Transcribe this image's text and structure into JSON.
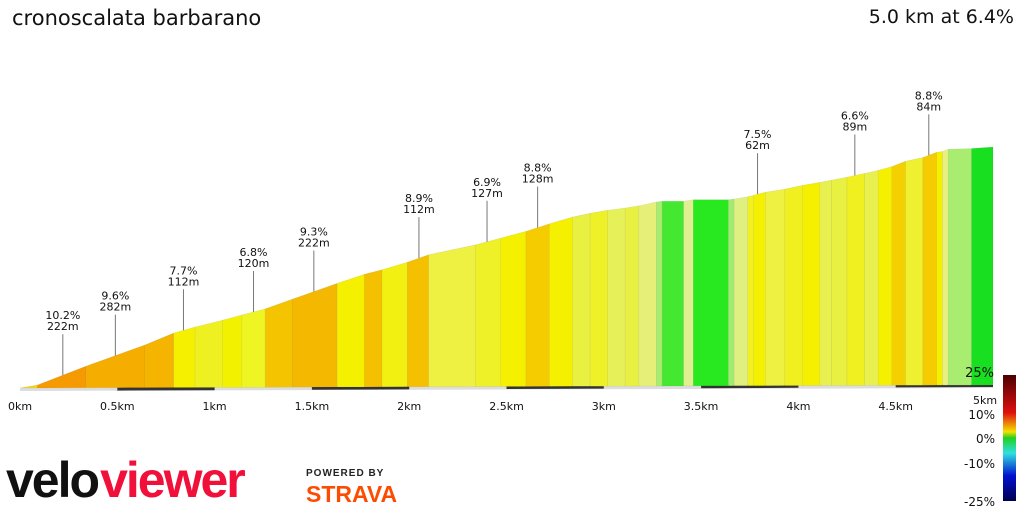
{
  "title": "cronoscalata barbarano",
  "summary": "5.0 km at 6.4%",
  "branding": {
    "velo": "velo",
    "viewer": "viewer",
    "powered_by": "POWERED BY",
    "strava": "STRAVA"
  },
  "chart_data": {
    "type": "area",
    "title": "cronoscalata barbarano",
    "xlabel": "",
    "ylabel": "",
    "xlim": [
      0,
      5
    ],
    "x_unit": "km",
    "x_ticks": [
      "0km",
      "0.5km",
      "1km",
      "1.5km",
      "2km",
      "2.5km",
      "3km",
      "3.5km",
      "4km",
      "4.5km",
      "5km"
    ],
    "profile_km": [
      0,
      0.09,
      0.34,
      0.64,
      0.79,
      0.9,
      1.04,
      1.14,
      1.26,
      1.4,
      1.63,
      1.77,
      1.86,
      1.99,
      2.1,
      2.34,
      2.47,
      2.6,
      2.72,
      2.84,
      2.93,
      3.02,
      3.11,
      3.18,
      3.27,
      3.3,
      3.41,
      3.46,
      3.64,
      3.67,
      3.74,
      3.77,
      3.83,
      3.93,
      4.02,
      4.11,
      4.17,
      4.25,
      4.34,
      4.41,
      4.48,
      4.55,
      4.64,
      4.71,
      4.74,
      4.77,
      4.89,
      5.0
    ],
    "profile_gain_m": [
      0,
      4,
      29,
      57,
      73,
      81,
      90,
      97,
      105,
      118,
      139,
      151,
      157,
      167,
      177,
      190,
      199,
      208,
      218,
      227,
      232,
      236,
      239,
      242,
      247,
      248,
      248,
      250,
      250,
      251,
      254,
      256,
      260,
      264,
      269,
      273,
      276,
      280,
      285,
      289,
      294,
      301,
      306,
      313,
      314,
      317,
      318,
      320
    ],
    "segment_colors": [
      "#f5d21a",
      "#f59a00",
      "#f5ae00",
      "#f5b400",
      "#f5f000",
      "#eef022",
      "#f2f200",
      "#eef522",
      "#f5c400",
      "#f5b800",
      "#f5f000",
      "#f5c000",
      "#f2f010",
      "#f5c000",
      "#eef042",
      "#eef028",
      "#f5f000",
      "#f5cc00",
      "#f5f000",
      "#e8f042",
      "#eef028",
      "#e6f058",
      "#e8f042",
      "#e6f078",
      "#a8ec70",
      "#44e830",
      "#e0ef90",
      "#28e820",
      "#a0ec70",
      "#e0f080",
      "#f2f020",
      "#f5f000",
      "#eef042",
      "#f0f020",
      "#f5f000",
      "#e8f050",
      "#e8f042",
      "#f0f020",
      "#e8f050",
      "#f5f000",
      "#f5d000",
      "#eef030",
      "#f5cc00",
      "#f5f000",
      "#e8f080",
      "#a8ec70",
      "#18e020"
    ],
    "annotations": [
      {
        "km": 0.22,
        "grade": "10.2%",
        "length": "222m"
      },
      {
        "km": 0.49,
        "grade": "9.6%",
        "length": "282m"
      },
      {
        "km": 0.84,
        "grade": "7.7%",
        "length": "112m"
      },
      {
        "km": 1.2,
        "grade": "6.8%",
        "length": "120m"
      },
      {
        "km": 1.51,
        "grade": "9.3%",
        "length": "222m"
      },
      {
        "km": 2.05,
        "grade": "8.9%",
        "length": "112m"
      },
      {
        "km": 2.4,
        "grade": "6.9%",
        "length": "127m"
      },
      {
        "km": 2.66,
        "grade": "8.8%",
        "length": "128m"
      },
      {
        "km": 3.79,
        "grade": "7.5%",
        "length": "62m"
      },
      {
        "km": 4.29,
        "grade": "6.6%",
        "length": "89m"
      },
      {
        "km": 4.67,
        "grade": "8.8%",
        "length": "84m"
      }
    ],
    "legend": {
      "type": "colorbar",
      "labels": [
        "25%",
        "10%",
        "0%",
        "-10%",
        "-25%"
      ],
      "colors": [
        "#4a0000",
        "#e01010",
        "#f5e000",
        "#20d020",
        "#30e0e0",
        "#0010d0",
        "#000050"
      ],
      "placement": "bottom-right"
    },
    "grid": false
  }
}
